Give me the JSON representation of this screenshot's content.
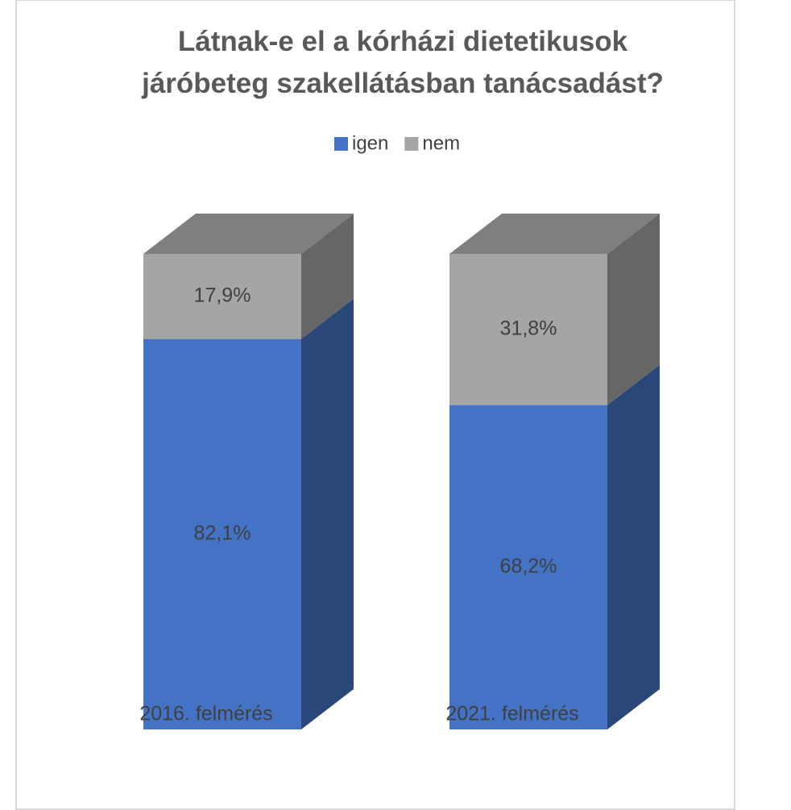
{
  "chart_data": {
    "type": "bar3d_stacked",
    "title": "Látnak-e el a kórházi dietetikusok járóbeteg szakellátásban tanácsadást?",
    "categories": [
      "2016. felmérés",
      "2021. felmérés"
    ],
    "series": [
      {
        "name": "igen",
        "color": "#4472c4",
        "values": [
          82.1,
          68.2
        ],
        "value_labels": [
          "82,1%",
          "68,2%"
        ]
      },
      {
        "name": "nem",
        "color": "#a5a5a5",
        "values": [
          17.9,
          31.8
        ],
        "value_labels": [
          "17,9%",
          "31,8%"
        ]
      }
    ],
    "legend": "top"
  }
}
